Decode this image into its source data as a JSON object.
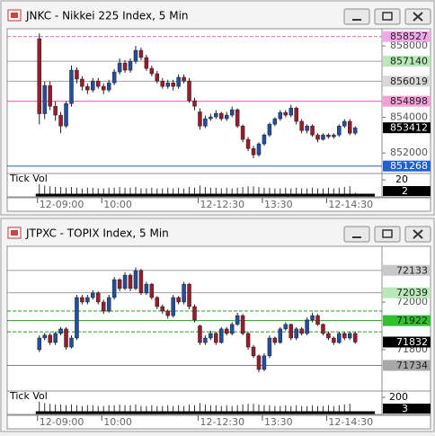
{
  "chart_data": [
    {
      "type": "candlestick",
      "title": "JNKC - Nikkei 225 Index, 5 Min",
      "up_color": "#1f4f9f",
      "down_color": "#9a1c2c",
      "xlim": [
        -6,
        64
      ],
      "xticks": [
        {
          "value": 0,
          "label": "12-09:00"
        },
        {
          "value": 12,
          "label": "10:00"
        },
        {
          "value": 30,
          "label": "12-12:30"
        },
        {
          "value": 42,
          "label": "13:30"
        },
        {
          "value": 54,
          "label": "12-14:30"
        }
      ],
      "ylim": [
        850900,
        858960
      ],
      "yticks": [
        852000,
        854000,
        858000
      ],
      "levels": [
        {
          "value": 858527,
          "color": "#e070c0",
          "dash": true,
          "box": "#f0a8e8"
        },
        {
          "value": 857140,
          "color": "#a0a0a0",
          "dash": false,
          "box": "#b8e8b8"
        },
        {
          "value": 856019,
          "color": "#a0a0a0",
          "dash": false,
          "box": "#d8d8d8"
        },
        {
          "value": 854898,
          "color": "#e060b0",
          "dash": false,
          "box": "#f4a0d8"
        },
        {
          "value": 851268,
          "color": "#2060d0",
          "dash": false,
          "box": "#2060d0"
        }
      ],
      "open": [
        858400,
        854200,
        855780,
        854620,
        854120,
        853510,
        854770,
        856640,
        856140,
        855730,
        855530,
        856030,
        855730,
        855530,
        855930,
        856540,
        857040,
        856640,
        857140,
        857750,
        857350,
        856740,
        856440,
        856030,
        855730,
        855930,
        855730,
        856240,
        856030,
        854930,
        854300,
        853510,
        853920,
        854020,
        854220,
        853920,
        854120,
        854420,
        853510,
        852760,
        852250,
        851900,
        852510,
        853010,
        853610,
        853920,
        854270,
        854120,
        854520,
        853770,
        853260,
        853510,
        853010,
        852760,
        853010,
        852910,
        853010,
        853510,
        853770,
        853110
      ],
      "high": [
        858700,
        856000,
        856000,
        854900,
        854300,
        854900,
        856900,
        856800,
        856300,
        855900,
        856200,
        856200,
        855900,
        856100,
        856700,
        857300,
        857200,
        857300,
        858000,
        857900,
        857500,
        856900,
        856600,
        856200,
        856100,
        856100,
        856400,
        856400,
        856200,
        855100,
        854500,
        854100,
        854200,
        854400,
        854300,
        854300,
        854600,
        854500,
        853600,
        852900,
        852400,
        852600,
        853100,
        853700,
        854000,
        854400,
        854400,
        854700,
        854600,
        853900,
        853600,
        853600,
        853100,
        853100,
        853100,
        853100,
        853600,
        853900,
        853900,
        853500
      ],
      "low": [
        853600,
        853900,
        854400,
        853800,
        853100,
        853400,
        854600,
        855900,
        855500,
        855300,
        855400,
        855600,
        855300,
        855400,
        855800,
        856400,
        856500,
        856500,
        857000,
        857200,
        856600,
        856300,
        855900,
        855600,
        855600,
        855500,
        855600,
        855900,
        854800,
        854400,
        853300,
        853400,
        853800,
        853900,
        853800,
        853800,
        854000,
        853400,
        852600,
        852100,
        851700,
        851800,
        852400,
        852900,
        853500,
        853800,
        854000,
        854000,
        853600,
        853100,
        853100,
        852900,
        852600,
        852700,
        852800,
        852800,
        852900,
        853400,
        853000,
        853000
      ],
      "close": [
        854200,
        855780,
        854620,
        854120,
        853510,
        854770,
        856640,
        856140,
        855730,
        855530,
        856030,
        855730,
        855530,
        855930,
        856540,
        857040,
        856640,
        857140,
        857750,
        857350,
        856740,
        856440,
        856030,
        855730,
        855930,
        855730,
        856240,
        856030,
        854930,
        854620,
        853510,
        853920,
        854020,
        854220,
        853920,
        854120,
        854420,
        853510,
        852760,
        852250,
        851900,
        852510,
        853010,
        853610,
        853920,
        854270,
        854120,
        854520,
        853770,
        853260,
        853510,
        853010,
        852760,
        853010,
        852910,
        853010,
        853510,
        853770,
        853110,
        853412
      ],
      "volume": {
        "label": "Tick Vol",
        "ylim": [
          0,
          25
        ],
        "yticks": [
          20
        ],
        "values": [
          14,
          12,
          11,
          10,
          10,
          9,
          10,
          9,
          8,
          9,
          9,
          8,
          8,
          9,
          9,
          10,
          9,
          9,
          10,
          8,
          8,
          9,
          8,
          8,
          9,
          8,
          9,
          8,
          10,
          9,
          12,
          10,
          9,
          9,
          8,
          9,
          8,
          9,
          10,
          11,
          11,
          10,
          9,
          9,
          8,
          8,
          9,
          8,
          9,
          8,
          8,
          9,
          8,
          8,
          9,
          8,
          9,
          10,
          11,
          2
        ]
      }
    },
    {
      "type": "candlestick",
      "title": "JTPXC - TOPIX Index, 5 Min",
      "up_color": "#1f4f9f",
      "down_color": "#9a1c2c",
      "xlim": [
        -6,
        64
      ],
      "xticks": [
        {
          "value": 0,
          "label": "12-09:00"
        },
        {
          "value": 12,
          "label": "10:00"
        },
        {
          "value": 30,
          "label": "12-12:30"
        },
        {
          "value": 42,
          "label": "13:30"
        },
        {
          "value": 54,
          "label": "12-14:30"
        }
      ],
      "ylim": [
        71630,
        72234
      ],
      "yticks": [
        71800,
        72000
      ],
      "levels": [
        {
          "value": 72133,
          "color": "#a0a0a0",
          "dash": false,
          "box": "#c8c8c8"
        },
        {
          "value": 72039,
          "color": "#a0a0a0",
          "dash": false,
          "box": "#b8e8b8"
        },
        {
          "value": 71962,
          "color": "#20a020",
          "dash": true
        },
        {
          "value": 71922,
          "color": "#20a020",
          "dash": false,
          "box": "#30c030"
        },
        {
          "value": 71875,
          "color": "#20a020",
          "dash": true
        },
        {
          "value": 71734,
          "color": "#808080",
          "dash": false,
          "box": "#a8a8a8"
        }
      ],
      "open": [
        71800,
        71849,
        71861,
        71830,
        71868,
        71887,
        71811,
        71849,
        72019,
        72000,
        72019,
        72038,
        72000,
        71962,
        72019,
        72094,
        72057,
        72113,
        72057,
        72132,
        72038,
        72075,
        72019,
        71981,
        71962,
        71943,
        72019,
        72000,
        72075,
        71981,
        71900,
        71830,
        71849,
        71868,
        71830,
        71887,
        71868,
        71906,
        71943,
        71868,
        71811,
        71774,
        71717,
        71774,
        71849,
        71830,
        71887,
        71906,
        71849,
        71887,
        71868,
        71925,
        71943,
        71906,
        71868,
        71849,
        71830,
        71868,
        71849,
        71868
      ],
      "high": [
        71860,
        71870,
        71870,
        71875,
        71895,
        71895,
        71860,
        72030,
        72030,
        72030,
        72050,
        72045,
        72010,
        72030,
        72105,
        72100,
        72125,
        72120,
        72145,
        72140,
        72085,
        72080,
        72025,
        71990,
        71970,
        72030,
        72025,
        72085,
        72080,
        71990,
        71905,
        71860,
        71880,
        71875,
        71895,
        71895,
        71915,
        71955,
        71950,
        71875,
        71820,
        71780,
        71785,
        71860,
        71855,
        71895,
        71915,
        71910,
        71895,
        71895,
        71935,
        71955,
        71950,
        71910,
        71875,
        71855,
        71875,
        71875,
        71875,
        71875
      ],
      "low": [
        71790,
        71840,
        71820,
        71820,
        71860,
        71800,
        71805,
        71840,
        71990,
        71990,
        72010,
        71990,
        71950,
        71955,
        72010,
        72045,
        72050,
        72045,
        72050,
        72030,
        72030,
        72010,
        71970,
        71950,
        71930,
        71935,
        71990,
        71990,
        71970,
        71915,
        71820,
        71820,
        71840,
        71820,
        71825,
        71860,
        71860,
        71900,
        71860,
        71800,
        71765,
        71705,
        71710,
        71765,
        71820,
        71825,
        71880,
        71840,
        71840,
        71860,
        71860,
        71915,
        71900,
        71860,
        71840,
        71820,
        71825,
        71840,
        71840,
        71825
      ],
      "close": [
        71849,
        71861,
        71830,
        71868,
        71887,
        71811,
        71849,
        72019,
        72000,
        72019,
        72038,
        72000,
        71962,
        72019,
        72094,
        72057,
        72113,
        72057,
        72132,
        72038,
        72075,
        72019,
        71981,
        71962,
        71943,
        72019,
        72000,
        72075,
        71981,
        71925,
        71830,
        71849,
        71868,
        71830,
        71887,
        71868,
        71906,
        71943,
        71868,
        71811,
        71774,
        71717,
        71774,
        71849,
        71830,
        71887,
        71906,
        71849,
        71887,
        71868,
        71925,
        71943,
        71906,
        71868,
        71849,
        71830,
        71868,
        71849,
        71868,
        71832
      ],
      "volume": {
        "label": "Tick Vol",
        "ylim": [
          0,
          250
        ],
        "yticks": [
          200
        ],
        "values": [
          140,
          120,
          110,
          100,
          100,
          90,
          100,
          90,
          80,
          90,
          90,
          80,
          80,
          90,
          90,
          100,
          90,
          90,
          100,
          80,
          80,
          90,
          80,
          80,
          90,
          80,
          90,
          80,
          100,
          90,
          120,
          100,
          90,
          90,
          80,
          90,
          80,
          90,
          100,
          110,
          110,
          100,
          90,
          90,
          80,
          80,
          90,
          80,
          90,
          80,
          80,
          90,
          80,
          80,
          90,
          80,
          90,
          100,
          110,
          3
        ]
      }
    }
  ]
}
